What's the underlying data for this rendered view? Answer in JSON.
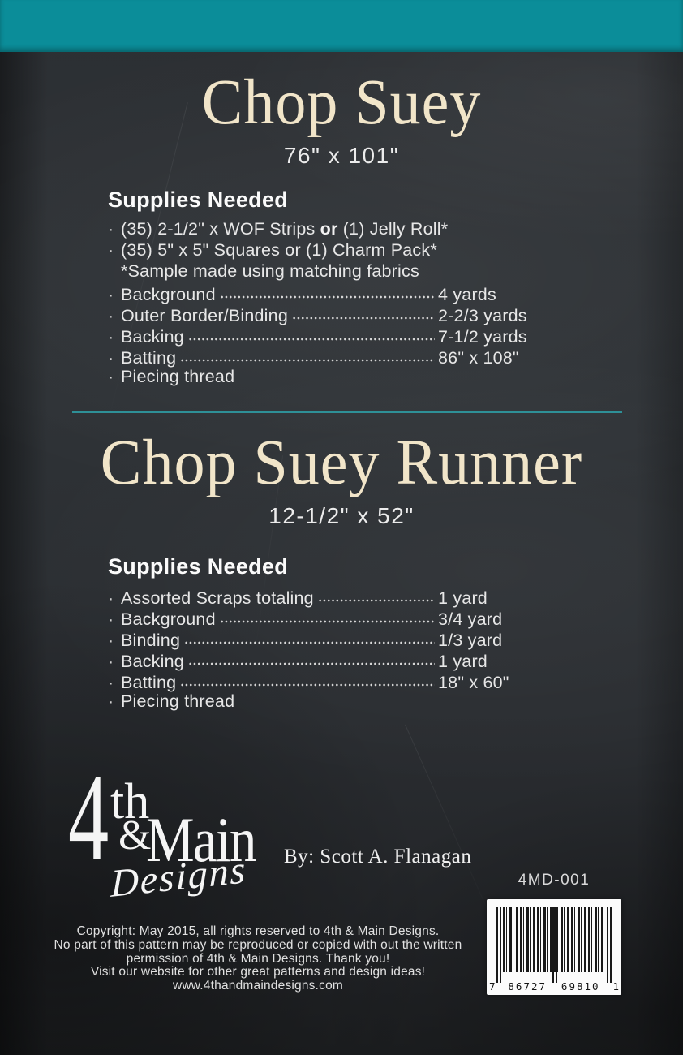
{
  "ui": {
    "bullet": "·"
  },
  "colors": {
    "top_bar_teal": "#0b8d99",
    "divider_teal": "#2e9097",
    "title_cream": "#f1e5c9",
    "chalkboard_bg": "#2a2d31",
    "body_text": "#e7e7e7"
  },
  "quilt": {
    "title": "Chop Suey",
    "dimensions": "76\" x 101\"",
    "supplies_header": "Supplies Needed",
    "item_strips_pre": "(35) 2-1/2\" x WOF Strips ",
    "item_strips_bold": "or",
    "item_strips_post": " (1) Jelly Roll*",
    "item_squares": "(35) 5\" x 5\" Squares or (1) Charm Pack*",
    "note": "*Sample made using matching fabrics",
    "rows": [
      {
        "label": "Background",
        "value": "4 yards"
      },
      {
        "label": "Outer Border/Binding",
        "value": "2-2/3 yards"
      },
      {
        "label": "Backing",
        "value": "7-1/2 yards"
      },
      {
        "label": "Batting",
        "value": "86\" x 108\""
      }
    ],
    "item_thread": "Piecing thread"
  },
  "runner": {
    "title": "Chop Suey Runner",
    "dimensions": "12-1/2\" x 52\"",
    "supplies_header": "Supplies Needed",
    "rows": [
      {
        "label": "Assorted Scraps totaling",
        "value": "1 yard"
      },
      {
        "label": "Background",
        "value": "3/4 yard"
      },
      {
        "label": "Binding",
        "value": "1/3 yard"
      },
      {
        "label": "Backing",
        "value": "1 yard"
      },
      {
        "label": "Batting",
        "value": "18\" x 60\""
      }
    ],
    "item_thread": "Piecing thread"
  },
  "footer": {
    "logo": {
      "numeral": "4",
      "th": "th",
      "amp": "&",
      "main": "Main",
      "designs": "Designs"
    },
    "byline": "By: Scott A. Flanagan",
    "sku": "4MD-001",
    "barcode": {
      "digit_left": "7",
      "digits_mid_1": "86727",
      "digits_mid_2": "69810",
      "digit_right": "1"
    },
    "copyright_lines": [
      "Copyright: May 2015, all rights reserved to 4th & Main Designs.",
      "No part of this pattern may be reproduced or copied with out the written",
      "permission of 4th & Main Designs. Thank you!",
      "Visit our website for other great patterns and design ideas!",
      "www.4thandmaindesigns.com"
    ]
  }
}
